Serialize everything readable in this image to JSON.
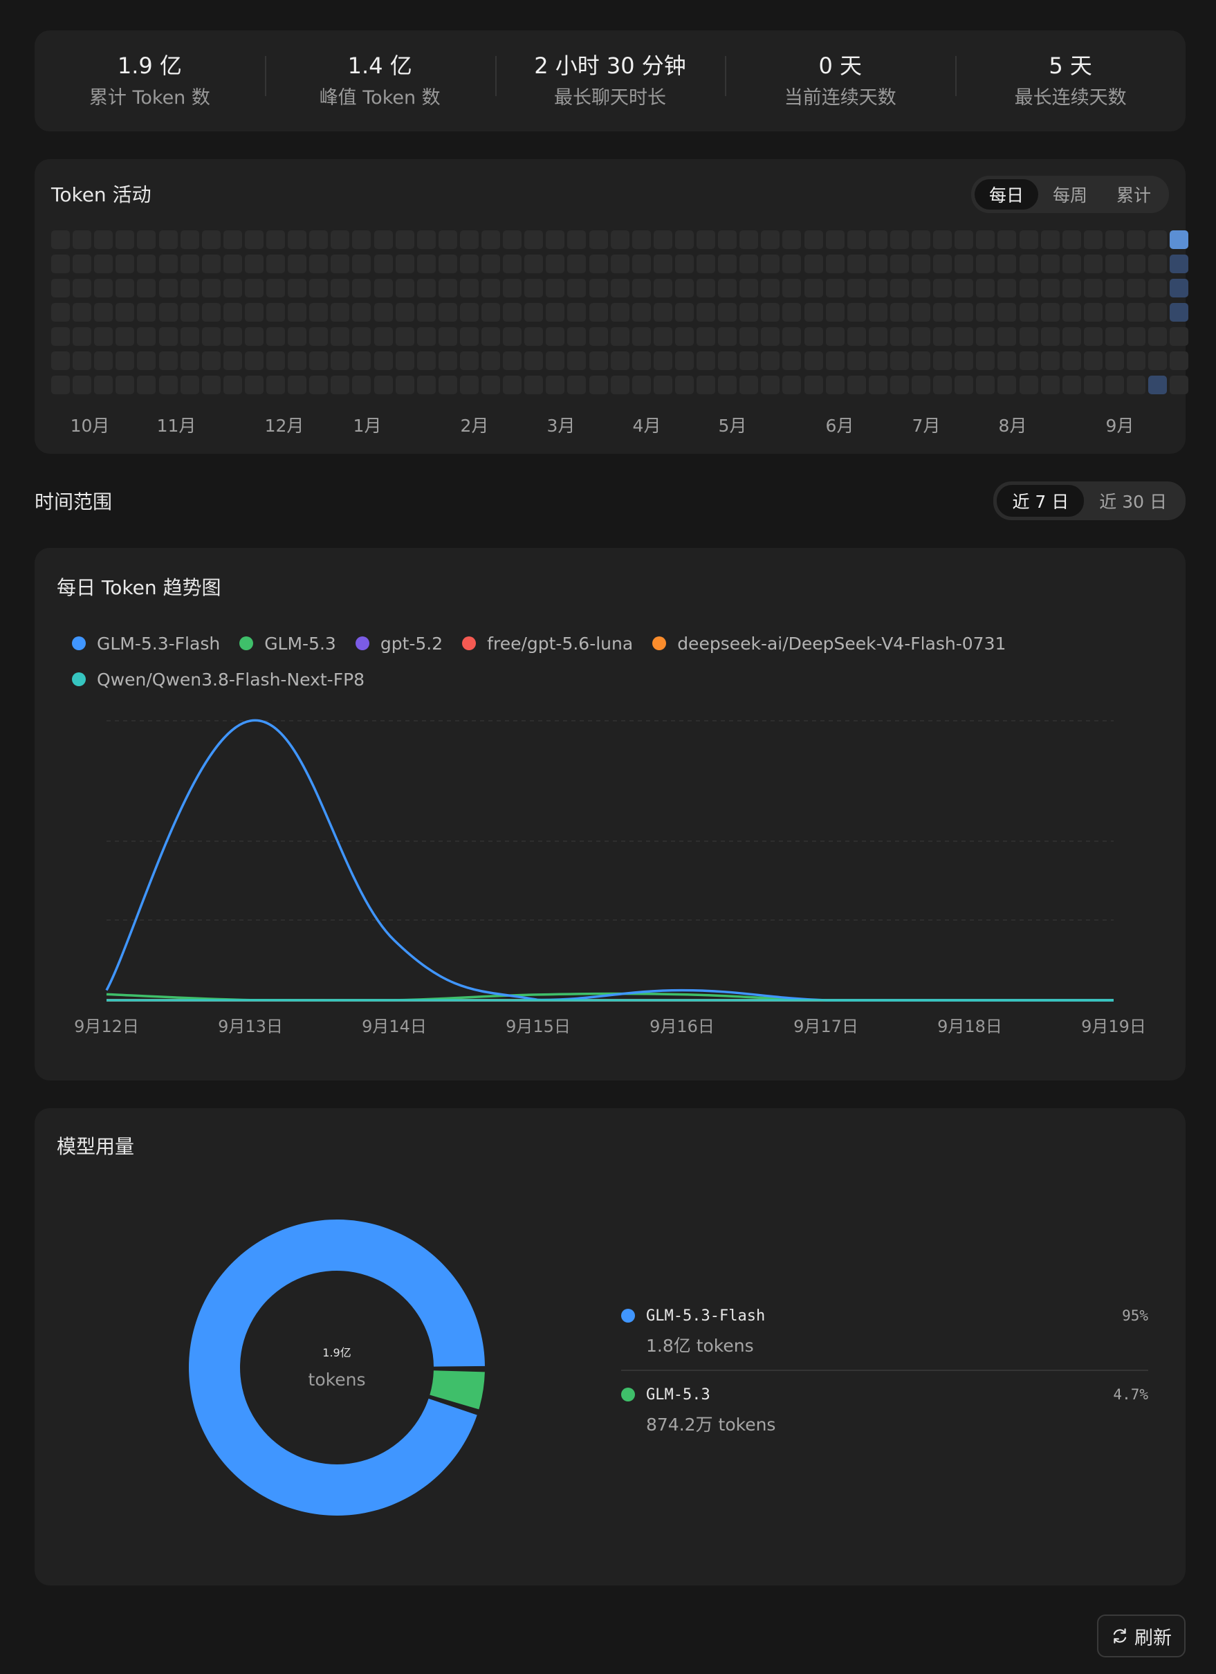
{
  "stats": [
    {
      "value": "1.9 亿",
      "label": "累计 Token 数"
    },
    {
      "value": "1.4 亿",
      "label": "峰值 Token 数"
    },
    {
      "value": "2 小时 30 分钟",
      "label": "最长聊天时长"
    },
    {
      "value": "0 天",
      "label": "当前连续天数"
    },
    {
      "value": "5 天",
      "label": "最长连续天数"
    }
  ],
  "activity": {
    "title": "Token 活动",
    "tabs": [
      "每日",
      "每周",
      "累计"
    ],
    "active_tab": "每日",
    "months": [
      "10月",
      "11月",
      "12月",
      "1月",
      "2月",
      "3月",
      "4月",
      "5月",
      "6月",
      "7月",
      "8月",
      "9月"
    ],
    "colors": {
      "empty": "#2c2c2c",
      "low": "#34486a",
      "high": "#5b8fd4"
    }
  },
  "time_range": {
    "title": "时间范围",
    "options": [
      "近 7 日",
      "近 30 日"
    ],
    "active": "近 7 日"
  },
  "trend": {
    "title": "每日 Token 趋势图"
  },
  "chart_data": [
    {
      "type": "line",
      "title": "每日 Token 趋势图",
      "x": [
        "9月12日",
        "9月13日",
        "9月14日",
        "9月15日",
        "9月16日",
        "9月17日",
        "9月18日",
        "9月19日"
      ],
      "ylim": [
        0,
        140000000
      ],
      "grid": true,
      "legend": "top-left",
      "smooth": true,
      "series": [
        {
          "name": "GLM-5.3-Flash",
          "color": "#4096ff",
          "values": [
            5000000,
            140000000,
            30000000,
            200000,
            5000000,
            0,
            0,
            0
          ]
        },
        {
          "name": "GLM-5.3",
          "color": "#3fbf6a",
          "values": [
            3000000,
            100000,
            50000,
            2800000,
            2900000,
            0,
            0,
            0
          ]
        },
        {
          "name": "gpt-5.2",
          "color": "#7b5ce6",
          "values": [
            0,
            0,
            0,
            0,
            0,
            0,
            0,
            0
          ]
        },
        {
          "name": "free/gpt-5.6-luna",
          "color": "#f55a52",
          "values": [
            0,
            0,
            0,
            0,
            0,
            0,
            0,
            0
          ]
        },
        {
          "name": "deepseek-ai/DeepSeek-V4-Flash-0731",
          "color": "#fa8c2c",
          "values": [
            0,
            0,
            0,
            0,
            0,
            0,
            0,
            0
          ]
        },
        {
          "name": "Qwen/Qwen3.8-Flash-Next-FP8",
          "color": "#36c5c0",
          "values": [
            0,
            0,
            0,
            0,
            0,
            0,
            0,
            0
          ]
        }
      ]
    },
    {
      "type": "pie",
      "title": "模型用量",
      "center_value": "1.9亿",
      "center_unit": "tokens",
      "series": [
        {
          "name": "GLM-5.3-Flash",
          "color": "#4096ff",
          "percent": 95,
          "percent_label": "95%",
          "tokens_label": "1.8亿 tokens"
        },
        {
          "name": "GLM-5.3",
          "color": "#3fbf6a",
          "percent": 4.7,
          "percent_label": "4.7%",
          "tokens_label": "874.2万 tokens"
        }
      ]
    }
  ],
  "usage": {
    "title": "模型用量",
    "center_value": "1.9亿",
    "center_unit": "tokens"
  },
  "refresh_label": "刷新"
}
